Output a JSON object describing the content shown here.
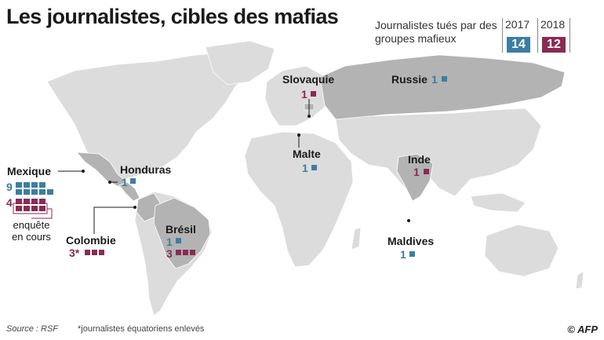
{
  "title": "Les journalistes, cibles des mafias",
  "legend": {
    "label": "Journalistes tués par des groupes mafieux",
    "year1": "2017",
    "year2": "2018",
    "total1": "14",
    "total2": "12"
  },
  "colors": {
    "c2017": "#3c7ea3",
    "c2018": "#8a2b53",
    "land": "#dcdcdc",
    "highlight": "#b3b3b3"
  },
  "countries": {
    "mexique": {
      "name": "Mexique",
      "v2017": "9",
      "v2018": "4"
    },
    "honduras": {
      "name": "Honduras",
      "v2017": "1"
    },
    "colombie": {
      "name": "Colombie",
      "v2018": "3*"
    },
    "bresil": {
      "name": "Brésil",
      "v2017": "1",
      "v2018": "3"
    },
    "slovaquie": {
      "name": "Slovaquie",
      "v2018": "1"
    },
    "russie": {
      "name": "Russie",
      "v2017": "1"
    },
    "malte": {
      "name": "Malte",
      "v2017": "1"
    },
    "inde": {
      "name": "Inde",
      "v2018": "1"
    },
    "maldives": {
      "name": "Maldives",
      "v2017": "1"
    }
  },
  "note_enquete": "enquête en cours",
  "footer": {
    "source": "Source : RSF",
    "footnote": "*journalistes équatoriens enlevés",
    "credit": "© AFP"
  }
}
